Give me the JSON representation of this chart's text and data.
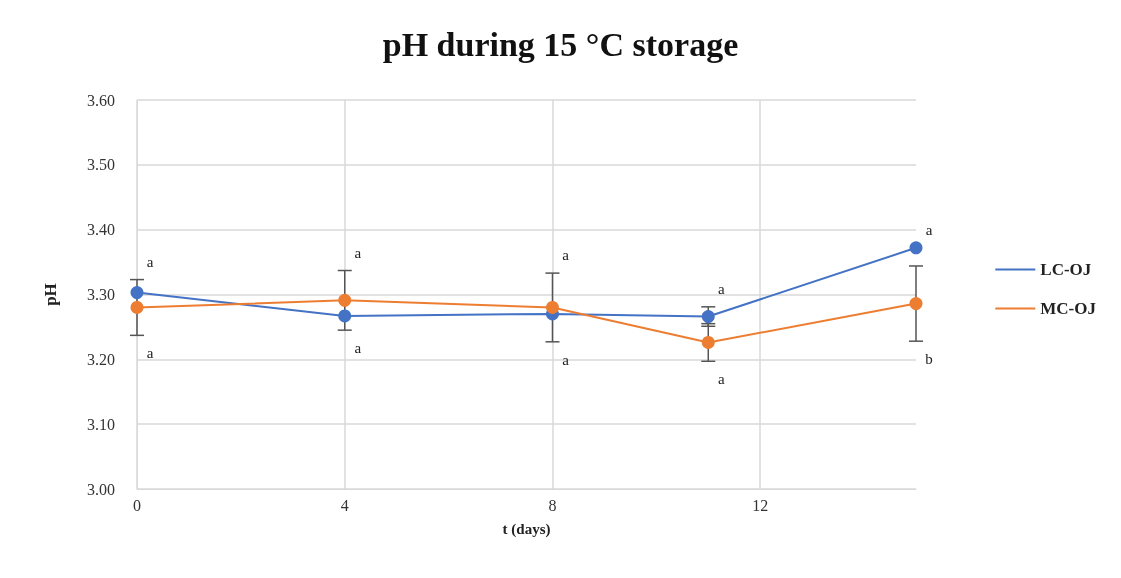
{
  "chart_data": {
    "type": "line",
    "title": "pH during 15 °C storage",
    "xlabel": "t (days)",
    "ylabel": "pH",
    "x": [
      0,
      4,
      8,
      11,
      15
    ],
    "series": [
      {
        "name": "LC-OJ",
        "color": "#4472c4",
        "values": [
          3.303,
          3.267,
          3.27,
          3.266,
          3.372
        ],
        "errors": [
          null,
          null,
          null,
          0.015,
          null
        ]
      },
      {
        "name": "MC-OJ",
        "color": "#ed7d31",
        "values": [
          3.28,
          3.291,
          3.28,
          3.226,
          3.286
        ],
        "errors": [
          0.043,
          0.046,
          0.053,
          0.029,
          0.058
        ]
      }
    ],
    "xlim": [
      0,
      15
    ],
    "xticks": [
      0,
      4,
      8,
      12
    ],
    "ylim": [
      3.0,
      3.6
    ],
    "yticks": [
      {
        "value": 3.0,
        "label": "3.00"
      },
      {
        "value": 3.1,
        "label": "3.10"
      },
      {
        "value": 3.2,
        "label": "3.20"
      },
      {
        "value": 3.3,
        "label": "3.30"
      },
      {
        "value": 3.4,
        "label": "3.40"
      },
      {
        "value": 3.5,
        "label": "3.50"
      },
      {
        "value": 3.6,
        "label": "3.60"
      }
    ],
    "annotations": [
      "a",
      "a",
      "a",
      "a",
      "a",
      "a",
      "a",
      "a",
      "a",
      "b"
    ],
    "grid": true,
    "legend": "right",
    "marker": "circle",
    "line_style": "solid"
  }
}
